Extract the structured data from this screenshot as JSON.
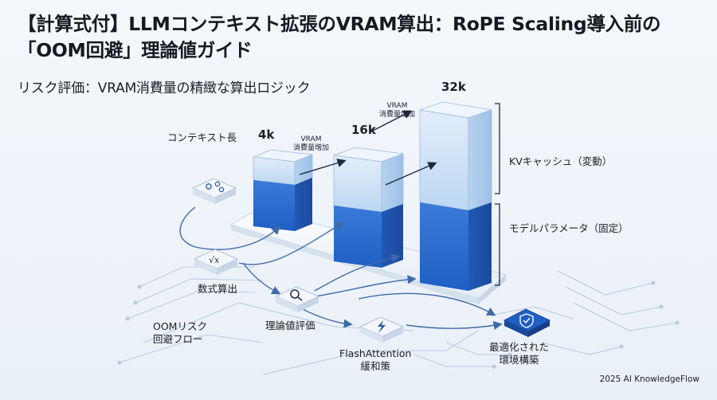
{
  "header": {
    "title": "【計算式付】LLMコンテキスト拡張のVRAM算出：RoPE Scaling導入前の「OOM回避」理論値ガイド",
    "subtitle": "リスク評価：VRAM消費量の精緻な算出ロジック"
  },
  "diagram": {
    "context_axis_label": "コンテキスト長",
    "bars": [
      {
        "label": "4k"
      },
      {
        "label": "16k"
      },
      {
        "label": "32k"
      }
    ],
    "growth_arrows": [
      {
        "label": "VRAM\n消費量増加"
      },
      {
        "label": "VRAM\n消費量増加"
      }
    ],
    "legend": {
      "kv_cache": "KVキャッシュ（変動）",
      "model_params": "モデルパラメータ（固定）"
    },
    "flow": {
      "title": "OOMリスク\n回避フロー",
      "steps": [
        {
          "label": "数式算出",
          "icon": "formula-icon"
        },
        {
          "label": "理論値評価",
          "icon": "magnifier-icon"
        },
        {
          "label": "FlashAttention\n緩和策",
          "icon": "lightning-icon"
        },
        {
          "label": "最適化された\n環境構築",
          "icon": "shield-check-icon"
        }
      ],
      "start_icon": "gear-cluster-icon"
    },
    "colors": {
      "kv_top": "#cfe3f6",
      "kv_side": "#a9c9ec",
      "param_front": "#2f6fd0",
      "param_side": "#1f55ad",
      "accent": "#1a5fc8"
    }
  },
  "footer": {
    "credit": "2025 AI KnowledgeFlow"
  }
}
